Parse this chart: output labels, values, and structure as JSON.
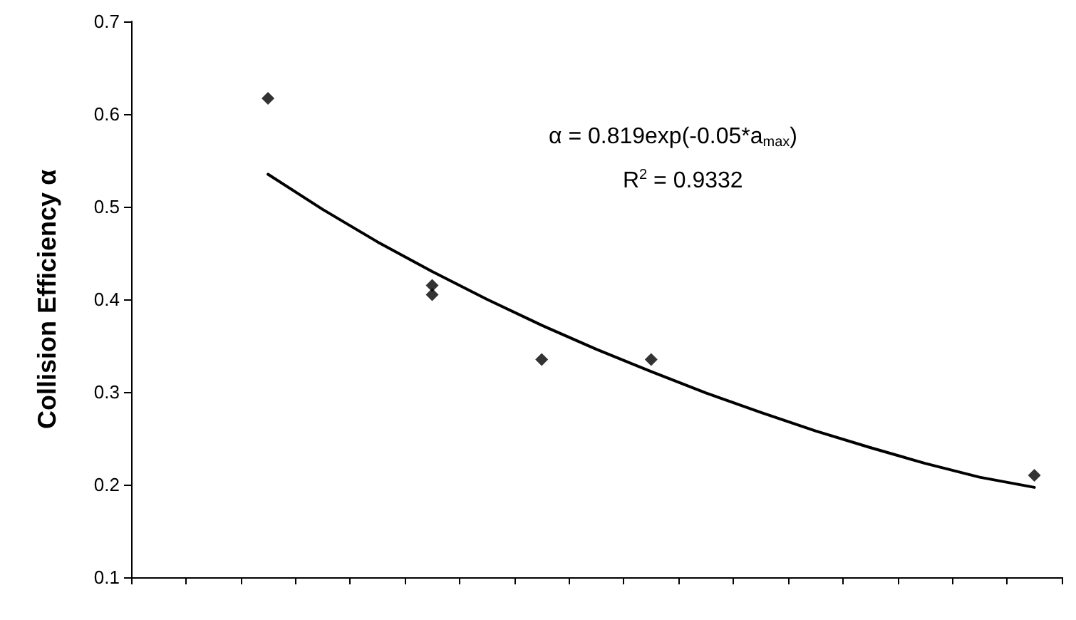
{
  "chart_data": {
    "type": "scatter",
    "ylabel": "Collision Efficiency α",
    "categories": [
      null,
      null,
      null,
      null,
      null,
      null,
      null,
      null,
      null,
      null,
      null,
      null,
      null,
      null,
      null,
      null,
      null
    ],
    "ylim": [
      0.1,
      0.7
    ],
    "yticks": [
      0.1,
      0.2,
      0.3,
      0.4,
      0.5,
      0.6,
      0.7
    ],
    "marker": "diamond",
    "grid": false,
    "series": [
      {
        "color": "#000000",
        "values": [
          null,
          null,
          0.617,
          null,
          null,
          0.415,
          null,
          0.335,
          null,
          0.335,
          null,
          null,
          null,
          null,
          null,
          null,
          0.21
        ]
      },
      {
        "color": "#000000",
        "values": [
          null,
          null,
          null,
          null,
          null,
          0.405,
          null,
          null,
          null,
          null,
          null,
          null,
          null,
          null,
          null,
          null,
          null
        ]
      },
      {
        "type": "line",
        "marker": "none",
        "line_style": "solid",
        "color": "#000000",
        "values": [
          null,
          null,
          0.535,
          0.497,
          0.462,
          0.43,
          0.4,
          0.372,
          0.346,
          0.322,
          0.299,
          0.278,
          0.258,
          0.24,
          0.223,
          0.208,
          0.197
        ]
      }
    ],
    "annotations": [
      "α = 0.819exp(-0.05*a$_{max}$)",
      "R$^{2}$ = 0.9332"
    ]
  }
}
